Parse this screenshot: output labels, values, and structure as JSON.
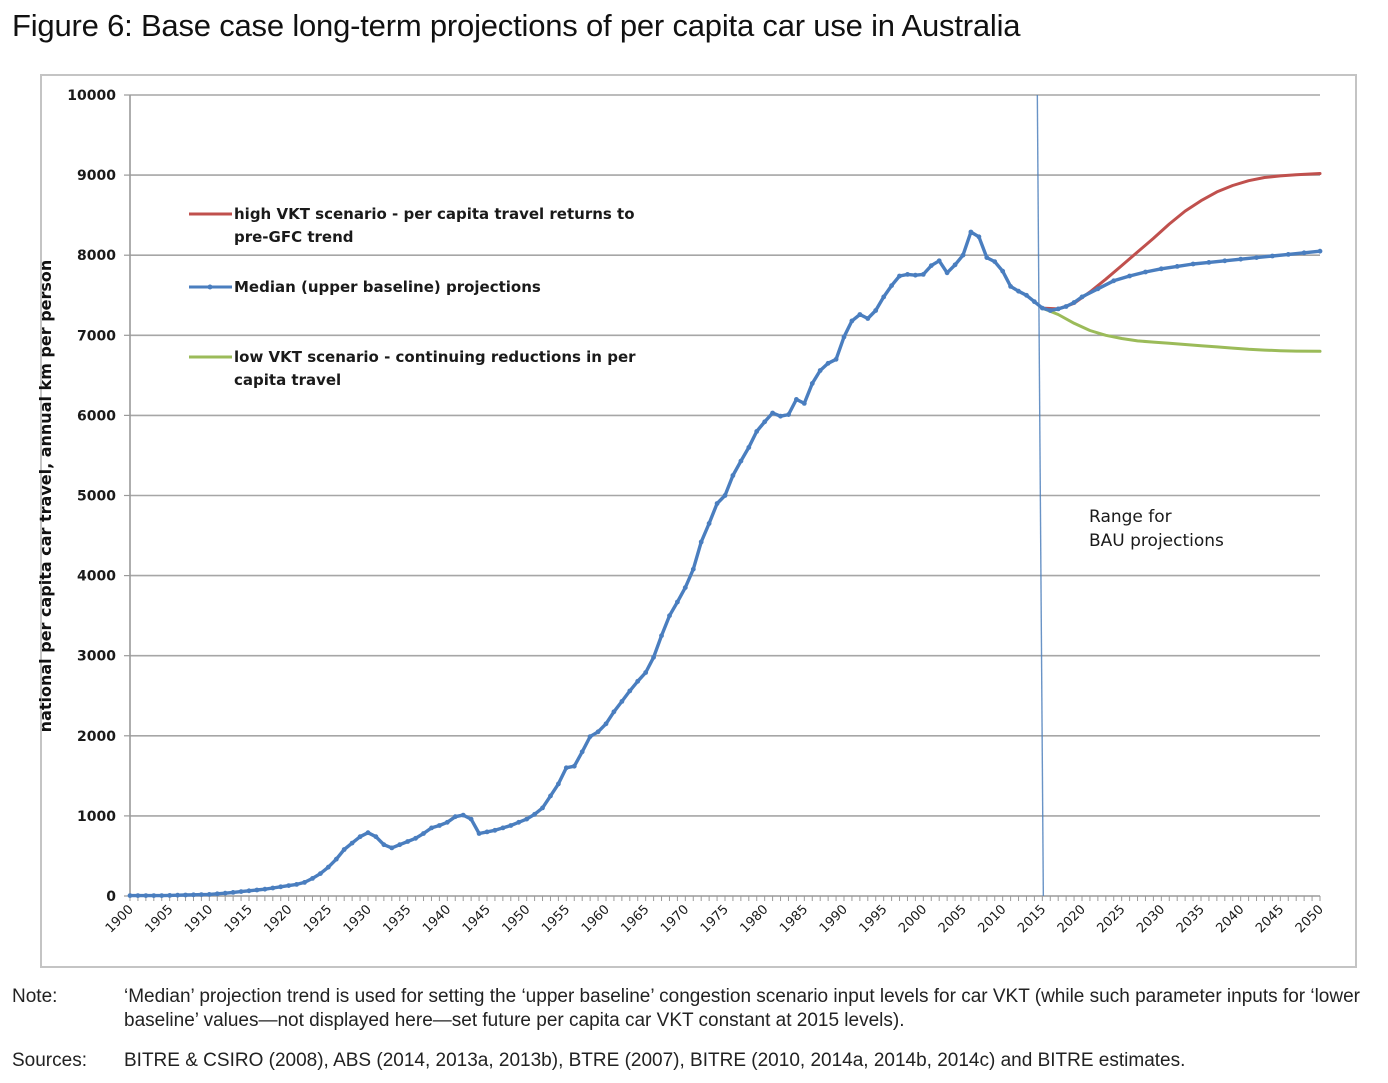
{
  "figure": {
    "title": "Figure 6:  Base case long-term projections of per capita car use in Australia"
  },
  "notes": {
    "note_label": "Note:",
    "note_text": "‘Median’ projection trend is used for setting the ‘upper baseline’ congestion scenario input levels for car VKT (while such parameter inputs for ‘lower baseline’ values—not displayed here—set future per capita car VKT constant at 2015 levels).",
    "sources_label": "Sources:",
    "sources_text": "BITRE & CSIRO (2008), ABS (2014, 2013a, 2013b), BTRE (2007), BITRE (2010, 2014a, 2014b, 2014c) and BITRE estimates."
  },
  "chart_data": {
    "type": "line",
    "title": "Figure 6:  Base case long-term projections of per capita car use in Australia",
    "xlabel": "",
    "ylabel": "national per capita car travel, annual km per person",
    "xlim": [
      1900,
      2050
    ],
    "ylim": [
      0,
      10000
    ],
    "grid": true,
    "x_tick_labels": [
      "1900",
      "1905",
      "1910",
      "1915",
      "1920",
      "1925",
      "1930",
      "1935",
      "1940",
      "1945",
      "1950",
      "1955",
      "1960",
      "1965",
      "1970",
      "1975",
      "1980",
      "1985",
      "1990",
      "1995",
      "2000",
      "2005",
      "2010",
      "2015",
      "2020",
      "2025",
      "2030",
      "2035",
      "2040",
      "2045",
      "2050"
    ],
    "y_tick_labels": [
      "0",
      "1000",
      "2000",
      "3000",
      "4000",
      "5000",
      "6000",
      "7000",
      "8000",
      "9000",
      "10000"
    ],
    "legend_placement": "top-left",
    "reference_line": {
      "x": 2015,
      "color": "#4f81bd"
    },
    "annotation": {
      "line1": "Range for",
      "line2": "BAU projections"
    },
    "series": [
      {
        "name": "high VKT scenario - per capita travel returns to pre-GFC trend",
        "legend_line1": "high VKT scenario - per capita travel returns to",
        "legend_line2": "pre-GFC trend",
        "color": "#c0504d",
        "markers": false,
        "x": [
          2015,
          2017,
          2019,
          2021,
          2023,
          2025,
          2027,
          2029,
          2031,
          2033,
          2035,
          2037,
          2039,
          2041,
          2043,
          2045,
          2047,
          2050
        ],
        "values": [
          7340,
          7330,
          7400,
          7540,
          7700,
          7870,
          8040,
          8210,
          8390,
          8550,
          8680,
          8790,
          8870,
          8930,
          8970,
          8990,
          9005,
          9020
        ]
      },
      {
        "name": "Median (upper baseline) projections",
        "legend_line1": "Median (upper baseline) projections",
        "color": "#4a7ebf",
        "markers": true,
        "x": [
          1900,
          1901,
          1902,
          1903,
          1904,
          1905,
          1906,
          1907,
          1908,
          1909,
          1910,
          1911,
          1912,
          1913,
          1914,
          1915,
          1916,
          1917,
          1918,
          1919,
          1920,
          1921,
          1922,
          1923,
          1924,
          1925,
          1926,
          1927,
          1928,
          1929,
          1930,
          1931,
          1932,
          1933,
          1934,
          1935,
          1936,
          1937,
          1938,
          1939,
          1940,
          1941,
          1942,
          1943,
          1944,
          1945,
          1946,
          1947,
          1948,
          1949,
          1950,
          1951,
          1952,
          1953,
          1954,
          1955,
          1956,
          1957,
          1958,
          1959,
          1960,
          1961,
          1962,
          1963,
          1964,
          1965,
          1966,
          1967,
          1968,
          1969,
          1970,
          1971,
          1972,
          1973,
          1974,
          1975,
          1976,
          1977,
          1978,
          1979,
          1980,
          1981,
          1982,
          1983,
          1984,
          1985,
          1986,
          1987,
          1988,
          1989,
          1990,
          1991,
          1992,
          1993,
          1994,
          1995,
          1996,
          1997,
          1998,
          1999,
          2000,
          2001,
          2002,
          2003,
          2004,
          2005,
          2006,
          2007,
          2008,
          2009,
          2010,
          2011,
          2012,
          2013,
          2014,
          2015,
          2016,
          2017,
          2018,
          2019,
          2020,
          2022,
          2024,
          2026,
          2028,
          2030,
          2032,
          2034,
          2036,
          2038,
          2040,
          2042,
          2044,
          2046,
          2048,
          2050
        ],
        "values": [
          5,
          5,
          5,
          5,
          5,
          8,
          10,
          12,
          15,
          18,
          20,
          28,
          35,
          45,
          55,
          65,
          75,
          85,
          100,
          115,
          130,
          145,
          170,
          220,
          280,
          360,
          460,
          580,
          660,
          740,
          790,
          740,
          640,
          600,
          640,
          680,
          720,
          780,
          850,
          880,
          920,
          990,
          1010,
          960,
          780,
          800,
          820,
          850,
          880,
          920,
          960,
          1020,
          1100,
          1250,
          1400,
          1600,
          1620,
          1800,
          1990,
          2050,
          2150,
          2300,
          2430,
          2560,
          2680,
          2790,
          2980,
          3250,
          3500,
          3670,
          3850,
          4080,
          4420,
          4650,
          4900,
          5000,
          5250,
          5430,
          5600,
          5800,
          5920,
          6030,
          5990,
          6010,
          6200,
          6150,
          6400,
          6560,
          6650,
          6700,
          6980,
          7180,
          7260,
          7210,
          7310,
          7480,
          7620,
          7740,
          7760,
          7750,
          7760,
          7870,
          7930,
          7780,
          7880,
          8000,
          8290,
          8230,
          7970,
          7920,
          7800,
          7610,
          7550,
          7500,
          7420,
          7340,
          7310,
          7330,
          7360,
          7410,
          7480,
          7580,
          7680,
          7740,
          7790,
          7830,
          7860,
          7890,
          7910,
          7930,
          7950,
          7970,
          7990,
          8010,
          8030,
          8050
        ]
      },
      {
        "name": "low VKT scenario - continuing reductions in per capita travel",
        "legend_line1": "low VKT scenario - continuing reductions in per",
        "legend_line2": "capita travel",
        "color": "#9bbb59",
        "markers": false,
        "x": [
          2015,
          2017,
          2019,
          2021,
          2023,
          2025,
          2027,
          2029,
          2031,
          2033,
          2035,
          2037,
          2039,
          2041,
          2043,
          2045,
          2047,
          2050
        ],
        "values": [
          7340,
          7260,
          7150,
          7060,
          7000,
          6960,
          6930,
          6915,
          6900,
          6885,
          6870,
          6855,
          6840,
          6825,
          6815,
          6808,
          6803,
          6800
        ]
      }
    ]
  }
}
